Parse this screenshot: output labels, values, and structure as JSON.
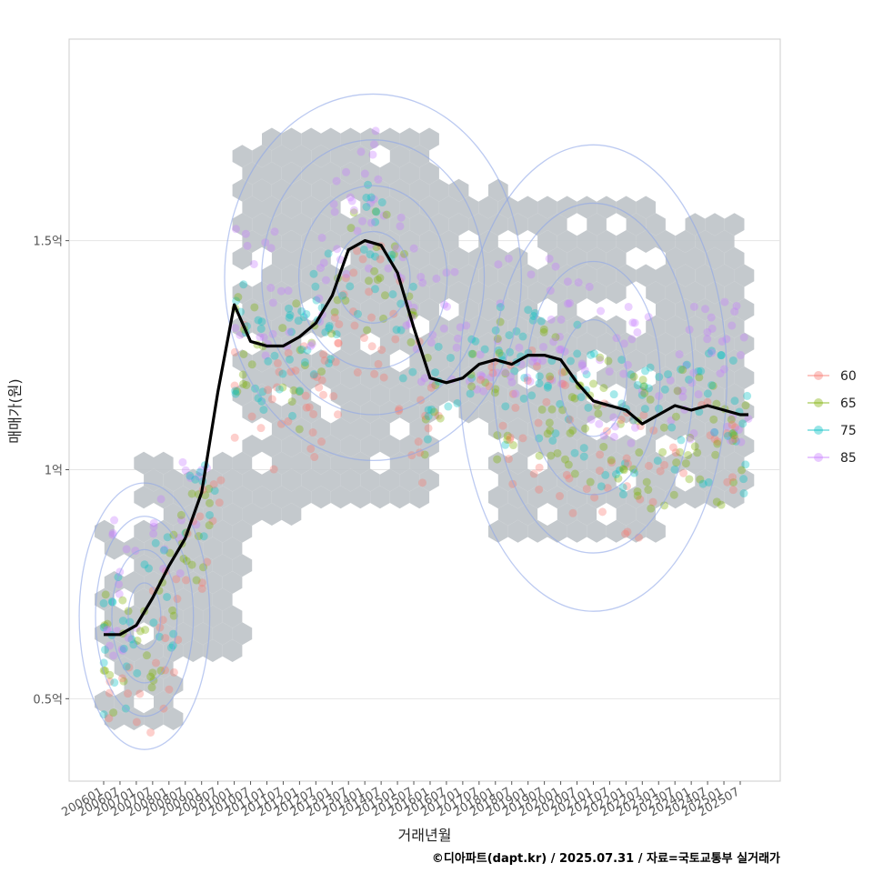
{
  "chart_data": {
    "type": "scatter",
    "title": "",
    "xlabel": "거래년월",
    "ylabel": "매매가(원)",
    "caption": "©디아파트(dapt.kr) / 2025.07.31 / 자료=국토교통부 실거래가",
    "y_ticks": [
      {
        "value": 0.5,
        "label": "0.5억"
      },
      {
        "value": 1.0,
        "label": "1억"
      },
      {
        "value": 1.5,
        "label": "1.5억"
      }
    ],
    "ylim": [
      0.32,
      1.94
    ],
    "x_ticks": [
      "200601",
      "200607",
      "200701",
      "200707",
      "200801",
      "200807",
      "200901",
      "200907",
      "201001",
      "201007",
      "201101",
      "201107",
      "201201",
      "201207",
      "201301",
      "201307",
      "201401",
      "201407",
      "201501",
      "201507",
      "201601",
      "201607",
      "201701",
      "201707",
      "201801",
      "201807",
      "201901",
      "201907",
      "202001",
      "202007",
      "202101",
      "202107",
      "202201",
      "202207",
      "202301",
      "202307",
      "202401",
      "202407",
      "202501",
      "202507"
    ],
    "legend": {
      "title": "",
      "position": "right",
      "items": [
        {
          "label": "60",
          "color": "#F8766D"
        },
        {
          "label": "65",
          "color": "#7CAE00"
        },
        {
          "label": "75",
          "color": "#00BFC4"
        },
        {
          "label": "85",
          "color": "#C77CFF"
        }
      ]
    },
    "trend_line": {
      "name": "moving-average",
      "x": [
        0,
        1,
        2,
        3,
        4,
        5,
        6,
        7,
        8,
        9,
        10,
        11,
        12,
        13,
        14,
        15,
        16,
        17,
        18,
        19,
        20,
        21,
        22,
        23,
        24,
        25,
        26,
        27,
        28,
        29,
        30,
        31,
        32,
        33,
        34,
        35,
        36,
        37,
        38,
        39,
        39.5
      ],
      "y": [
        0.64,
        0.64,
        0.66,
        0.72,
        0.79,
        0.85,
        0.95,
        1.17,
        1.36,
        1.28,
        1.27,
        1.27,
        1.29,
        1.32,
        1.38,
        1.48,
        1.5,
        1.49,
        1.43,
        1.31,
        1.2,
        1.19,
        1.2,
        1.23,
        1.24,
        1.23,
        1.25,
        1.25,
        1.24,
        1.19,
        1.15,
        1.14,
        1.13,
        1.1,
        1.12,
        1.14,
        1.13,
        1.14,
        1.13,
        1.12,
        1.12
      ]
    },
    "series_density_note": "Hex bins, transaction points by area (60/65/75/85) and density contours summarise deal volume.",
    "colors": {
      "hex": "#BFC4C9",
      "contour": "#8FA7E8",
      "line": "#000000",
      "grid": "#E5E5E5"
    }
  }
}
